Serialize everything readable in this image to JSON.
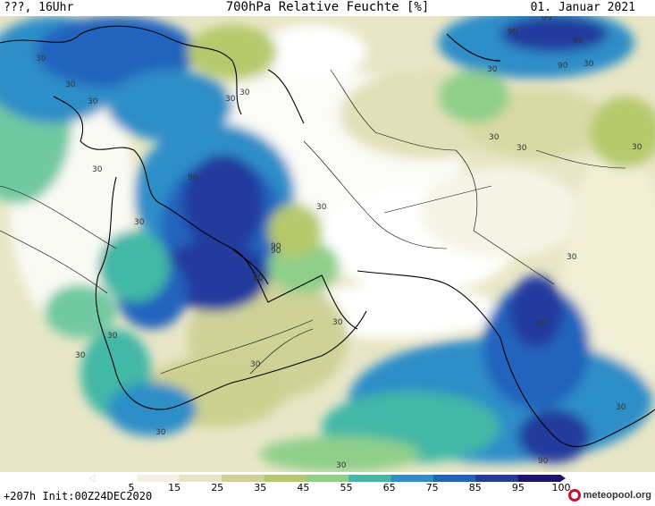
{
  "header": {
    "left": "???, 16Uhr",
    "title": "700hPa Relative Feuchte [%]",
    "date": "01. Januar 2021"
  },
  "map": {
    "contour_labels": [
      "30",
      "30",
      "30",
      "30",
      "90",
      "30",
      "30",
      "30",
      "30",
      "90",
      "90",
      "30",
      "30",
      "30",
      "30",
      "90",
      "90",
      "30",
      "90",
      "30",
      "30",
      "90",
      "30",
      "30",
      "30",
      "90",
      "99",
      "99",
      "90",
      "30",
      "30",
      "30"
    ]
  },
  "legend": {
    "ticks": [
      "5",
      "15",
      "25",
      "35",
      "45",
      "55",
      "65",
      "75",
      "85",
      "95",
      "100"
    ],
    "colors": [
      "#ffffff",
      "#f4f1e4",
      "#e6e4c2",
      "#cfd297",
      "#b6c96c",
      "#8fcf8a",
      "#43b8a6",
      "#2d8ec8",
      "#2063bd",
      "#243a9d",
      "#1b1470"
    ]
  },
  "footer": {
    "run": "+207h  Init:00Z24DEC2020",
    "logo_text": "meteopool.org"
  }
}
